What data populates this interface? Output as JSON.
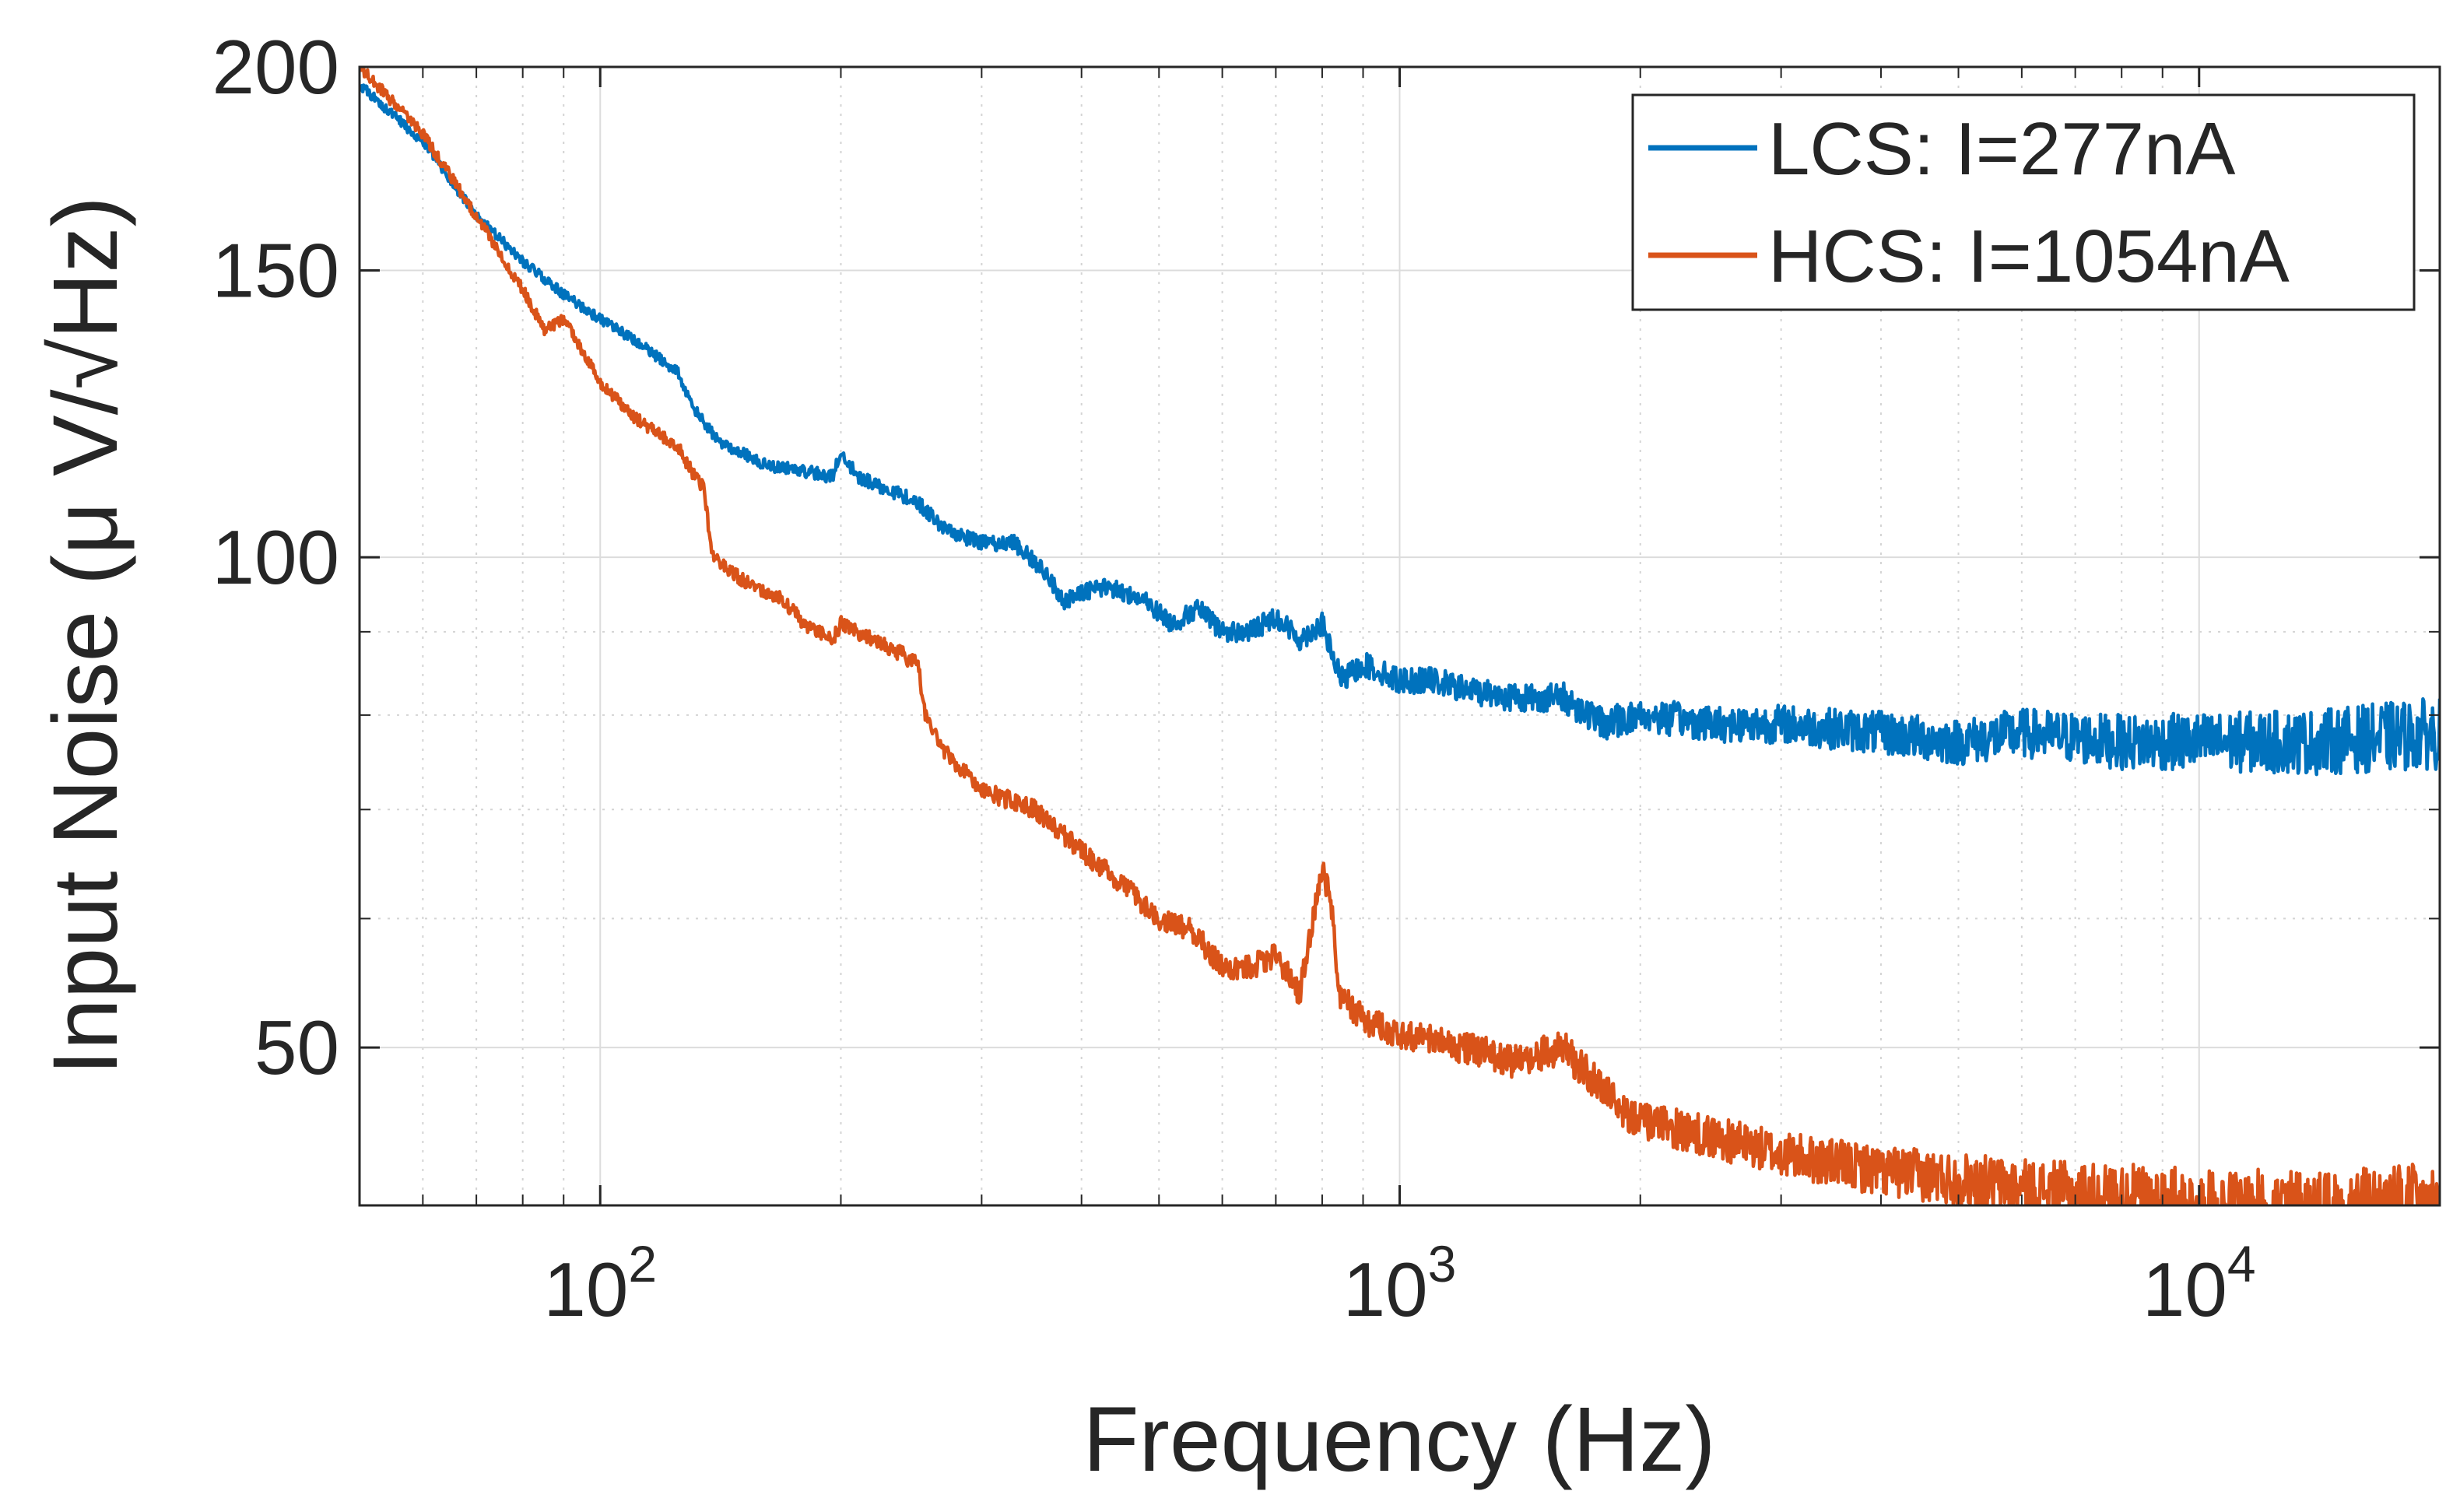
{
  "chart_data": {
    "type": "line",
    "title": "",
    "xlabel": "Frequency (Hz)",
    "ylabel": "Input Noise (μ V/√Hz)",
    "xscale": "log",
    "yscale": "log",
    "xlim": [
      50,
      20000
    ],
    "ylim": [
      40,
      200
    ],
    "grid": true,
    "minor_grid": true,
    "legend_position": "top-right",
    "x_ticks": [
      {
        "value": 100,
        "base": "10",
        "exp": "2"
      },
      {
        "value": 1000,
        "base": "10",
        "exp": "3"
      },
      {
        "value": 10000,
        "base": "10",
        "exp": "4"
      }
    ],
    "y_ticks": [
      {
        "value": 50,
        "label": "50"
      },
      {
        "value": 100,
        "label": "100"
      },
      {
        "value": 150,
        "label": "150"
      },
      {
        "value": 200,
        "label": "200"
      }
    ],
    "series": [
      {
        "name": "LCS: I=277nA",
        "color": "#0072BD",
        "noise": 0.012,
        "points": [
          [
            50,
            195
          ],
          [
            60,
            180
          ],
          [
            70,
            162
          ],
          [
            80,
            152
          ],
          [
            90,
            145
          ],
          [
            100,
            140
          ],
          [
            110,
            136
          ],
          [
            125,
            130
          ],
          [
            130,
            124
          ],
          [
            140,
            118
          ],
          [
            150,
            116
          ],
          [
            160,
            114
          ],
          [
            180,
            113
          ],
          [
            195,
            112
          ],
          [
            200,
            116
          ],
          [
            210,
            112
          ],
          [
            230,
            110
          ],
          [
            250,
            108
          ],
          [
            270,
            104
          ],
          [
            300,
            102
          ],
          [
            330,
            102
          ],
          [
            360,
            98
          ],
          [
            380,
            94
          ],
          [
            400,
            95
          ],
          [
            430,
            96
          ],
          [
            480,
            94
          ],
          [
            520,
            91
          ],
          [
            560,
            93
          ],
          [
            600,
            90
          ],
          [
            650,
            90
          ],
          [
            700,
            92
          ],
          [
            750,
            89
          ],
          [
            800,
            91
          ],
          [
            830,
            86
          ],
          [
            850,
            84
          ],
          [
            900,
            86
          ],
          [
            1000,
            84
          ],
          [
            1100,
            84
          ],
          [
            1200,
            83
          ],
          [
            1400,
            82
          ],
          [
            1600,
            82
          ],
          [
            1800,
            79
          ],
          [
            2000,
            80
          ],
          [
            2500,
            79
          ],
          [
            3000,
            79
          ],
          [
            4000,
            78
          ],
          [
            5000,
            77
          ],
          [
            6000,
            78
          ],
          [
            8000,
            77
          ],
          [
            10000,
            77
          ],
          [
            14000,
            77
          ],
          [
            20000,
            78
          ]
        ]
      },
      {
        "name": "HCS: I=1054nA",
        "color": "#D95319",
        "noise": 0.014,
        "points": [
          [
            50,
            200
          ],
          [
            60,
            182
          ],
          [
            70,
            162
          ],
          [
            80,
            146
          ],
          [
            85,
            138
          ],
          [
            90,
            140
          ],
          [
            100,
            128
          ],
          [
            110,
            122
          ],
          [
            125,
            117
          ],
          [
            130,
            113
          ],
          [
            135,
            110
          ],
          [
            138,
            100
          ],
          [
            150,
            97
          ],
          [
            170,
            94
          ],
          [
            180,
            91
          ],
          [
            195,
            89
          ],
          [
            200,
            91
          ],
          [
            210,
            90
          ],
          [
            230,
            88
          ],
          [
            250,
            86
          ],
          [
            255,
            80
          ],
          [
            270,
            76
          ],
          [
            300,
            72
          ],
          [
            350,
            70
          ],
          [
            400,
            66
          ],
          [
            450,
            63
          ],
          [
            500,
            60
          ],
          [
            550,
            59
          ],
          [
            600,
            56
          ],
          [
            650,
            56
          ],
          [
            700,
            57
          ],
          [
            750,
            54
          ],
          [
            780,
            60
          ],
          [
            800,
            64
          ],
          [
            820,
            62
          ],
          [
            840,
            54
          ],
          [
            900,
            52
          ],
          [
            1000,
            51
          ],
          [
            1200,
            50
          ],
          [
            1400,
            49
          ],
          [
            1600,
            50
          ],
          [
            1800,
            47
          ],
          [
            2000,
            45
          ],
          [
            2500,
            44
          ],
          [
            3000,
            43
          ],
          [
            4000,
            42
          ],
          [
            5000,
            41.5
          ],
          [
            6000,
            41
          ],
          [
            8000,
            40.5
          ],
          [
            9000,
            40.5
          ],
          [
            10000,
            40
          ],
          [
            14000,
            40
          ],
          [
            20000,
            40
          ]
        ]
      }
    ]
  }
}
